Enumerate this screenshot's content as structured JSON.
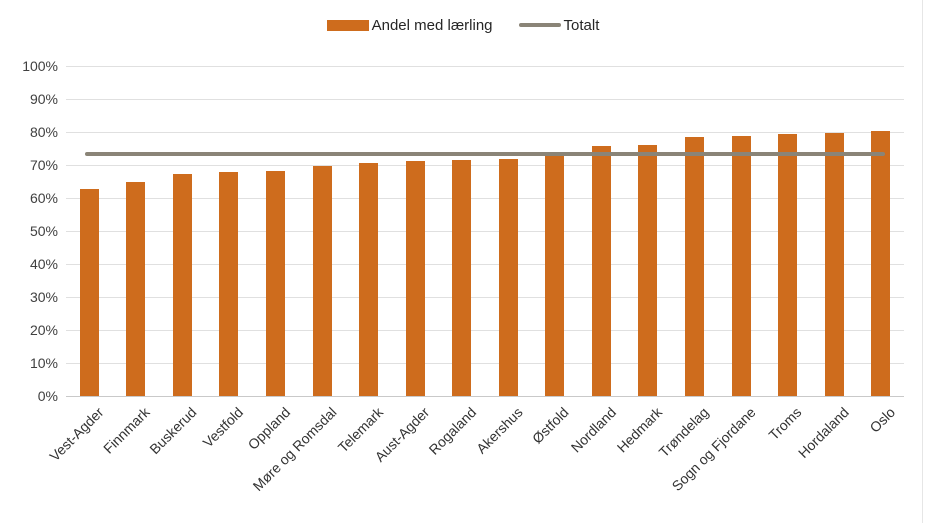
{
  "legend": {
    "series1_label": "Andel med lærling",
    "series2_label": "Totalt"
  },
  "chart_data": {
    "type": "bar",
    "title": "",
    "xlabel": "",
    "ylabel": "",
    "categories": [
      "Vest-Agder",
      "Finnmark",
      "Buskerud",
      "Vestfold",
      "Oppland",
      "Møre og Romsdal",
      "Telemark",
      "Aust-Agder",
      "Rogaland",
      "Akershus",
      "Østfold",
      "Nordland",
      "Hedmark",
      "Trøndelag",
      "Sogn og Fjordane",
      "Troms",
      "Hordaland",
      "Oslo"
    ],
    "series": [
      {
        "name": "Andel med lærling",
        "type": "bar",
        "values": [
          62.6,
          65.0,
          67.2,
          67.8,
          68.3,
          69.7,
          70.5,
          71.1,
          71.4,
          71.8,
          72.7,
          75.8,
          76.2,
          78.4,
          78.9,
          79.3,
          79.7,
          80.3
        ]
      },
      {
        "name": "Totalt",
        "type": "line",
        "value": 73.3
      }
    ],
    "ylim": [
      0,
      100
    ],
    "y_ticks": [
      "0%",
      "10%",
      "20%",
      "30%",
      "40%",
      "50%",
      "60%",
      "70%",
      "80%",
      "90%",
      "100%"
    ],
    "grid": true,
    "legend_position": "top",
    "x_labels_rotation_deg": 45
  },
  "colors": {
    "bar": "#CE6C1D",
    "total_line": "#8A8477",
    "gridline": "#E0E0E0",
    "axis_line": "#C9C9C9",
    "tick_text": "#404040",
    "background": "#FFFFFF"
  }
}
